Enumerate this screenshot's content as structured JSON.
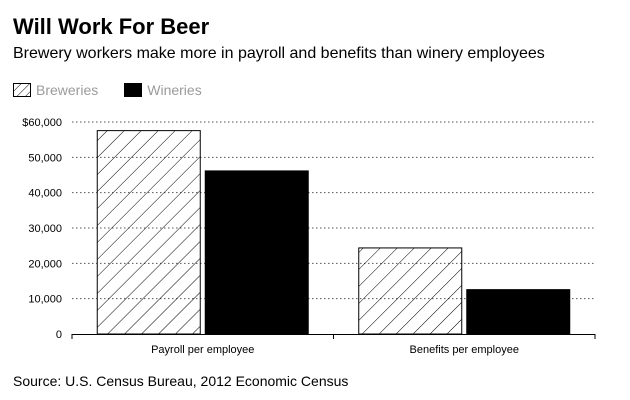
{
  "header": {
    "title": "Will Work For Beer",
    "subtitle": "Brewery workers make more in payroll and benefits than winery employees"
  },
  "legend": {
    "position": "top-left",
    "items": [
      {
        "label": "Breweries",
        "fill": "hatched"
      },
      {
        "label": "Wineries",
        "fill": "#000000"
      }
    ]
  },
  "footer": {
    "source": "Source: U.S. Census Bureau, 2012 Economic Census"
  },
  "chart_data": {
    "type": "bar",
    "categories": [
      "Payroll per employee",
      "Benefits per employee"
    ],
    "series": [
      {
        "name": "Breweries",
        "values": [
          57700,
          24500
        ]
      },
      {
        "name": "Wineries",
        "values": [
          46300,
          12700
        ]
      }
    ],
    "title": "Will Work For Beer",
    "subtitle": "Brewery workers make more in payroll and benefits than winery employees",
    "xlabel": "",
    "ylabel": "",
    "ylim": [
      0,
      60000
    ],
    "yticks": [
      0,
      10000,
      20000,
      30000,
      40000,
      50000,
      60000
    ],
    "ytick_labels": [
      "0",
      "10,000",
      "20,000",
      "30,000",
      "40,000",
      "50,000",
      "$60,000"
    ],
    "grid": true,
    "legend_position": "top-left",
    "colors": {
      "wineries": "#000000",
      "breweries_hatch": "#000000",
      "gridline": "#555555"
    }
  }
}
